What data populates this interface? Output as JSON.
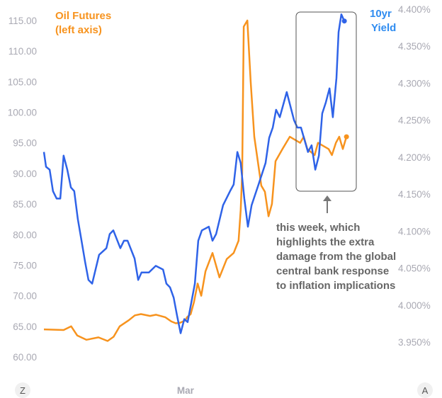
{
  "chart_data": {
    "type": "line",
    "title": "",
    "x_tick_labels": [
      {
        "label": "Mar",
        "t": 46.7
      }
    ],
    "x_range": [
      0,
      100
    ],
    "left_axis": {
      "label": "Oil Futures (left axis)",
      "ylim": [
        60,
        115
      ],
      "ticks": [
        "60.00",
        "65.00",
        "70.00",
        "75.00",
        "80.00",
        "85.00",
        "90.00",
        "95.00",
        "100.00",
        "105.00",
        "110.00",
        "115.00"
      ]
    },
    "right_axis": {
      "label": "10yr Yield",
      "ylim": [
        3.95,
        4.4
      ],
      "ticks": [
        "3.950%",
        "4.000%",
        "4.050%",
        "4.100%",
        "4.150%",
        "4.200%",
        "4.250%",
        "4.300%",
        "4.350%",
        "4.400%"
      ]
    },
    "grid": false,
    "series": [
      {
        "name": "Oil Futures",
        "axis": "left",
        "color": "#f7931e",
        "x": [
          0,
          6.5,
          9,
          11,
          14,
          18,
          21,
          23,
          25,
          28,
          30,
          32,
          35,
          37,
          40,
          42,
          43.5,
          45,
          46.7,
          47.2,
          48.4,
          49.5,
          50.7,
          51.9,
          53.3,
          55.6,
          57.9,
          60.3,
          62.6,
          64.2,
          64.9,
          65.4,
          65.9,
          67.1,
          68.2,
          69.4,
          71.7,
          72.9,
          74.1,
          75.2,
          76.4,
          78.7,
          81.1,
          84.5,
          85.7,
          86.9,
          89.3,
          90.4,
          93.9,
          95,
          96.3,
          97.4,
          98.6,
          99.8
        ],
        "y": [
          64.5,
          64.4,
          65,
          63.5,
          62.8,
          63.2,
          62.6,
          63.3,
          65,
          66,
          66.8,
          67,
          66.7,
          66.9,
          66.5,
          65.8,
          65.5,
          65.6,
          66,
          66.5,
          67,
          69,
          72,
          70,
          74,
          77,
          73,
          76,
          77,
          79,
          84,
          90,
          114,
          115,
          105,
          96,
          88,
          87,
          83,
          85,
          92,
          94,
          96,
          95,
          96,
          94,
          93,
          95,
          94,
          93,
          95,
          96,
          94,
          96
        ]
      },
      {
        "name": "10yr Yield",
        "axis": "right",
        "color": "#2f63e8",
        "x": [
          0,
          0.7,
          1.9,
          3,
          4.2,
          5.4,
          6.5,
          7.7,
          8.9,
          10,
          11.2,
          12.4,
          13.6,
          14.7,
          15.9,
          18.2,
          20.6,
          21.7,
          22.9,
          25.2,
          26.4,
          27.6,
          29.9,
          31.1,
          32.2,
          34.6,
          36.9,
          39.3,
          40.4,
          41.6,
          42.8,
          43.9,
          45.1,
          46.3,
          47.4,
          49.8,
          50.9,
          52.1,
          54.4,
          55.6,
          56.8,
          59.1,
          61.4,
          62.6,
          63.8,
          64.9,
          66.1,
          67.3,
          68.5,
          70.8,
          73.1,
          74.3,
          75.5,
          76.6,
          77.8,
          80.1,
          82.5,
          83.6,
          84.8,
          87.1,
          88.3,
          89.5,
          90.7,
          91.8,
          93,
          94.2,
          95.3,
          96.5,
          97.2,
          98.1,
          99.1
        ],
        "y": [
          4.207,
          4.187,
          4.183,
          4.154,
          4.144,
          4.144,
          4.202,
          4.183,
          4.159,
          4.154,
          4.116,
          4.087,
          4.058,
          4.034,
          4.029,
          4.068,
          4.077,
          4.096,
          4.101,
          4.077,
          4.087,
          4.087,
          4.063,
          4.034,
          4.044,
          4.044,
          4.053,
          4.048,
          4.029,
          4.024,
          4.01,
          3.986,
          3.962,
          3.981,
          3.977,
          4.029,
          4.087,
          4.101,
          4.106,
          4.087,
          4.096,
          4.135,
          4.154,
          4.163,
          4.207,
          4.192,
          4.144,
          4.106,
          4.135,
          4.163,
          4.192,
          4.226,
          4.24,
          4.264,
          4.254,
          4.288,
          4.25,
          4.24,
          4.24,
          4.207,
          4.216,
          4.183,
          4.202,
          4.259,
          4.274,
          4.293,
          4.254,
          4.307,
          4.369,
          4.393,
          4.384
        ]
      }
    ],
    "annotation": "this week, which highlights the extra damage from the global central bank response to inflation implications",
    "legend_placement": "top"
  },
  "nav": {
    "left_label": "Z",
    "right_label": "A"
  }
}
